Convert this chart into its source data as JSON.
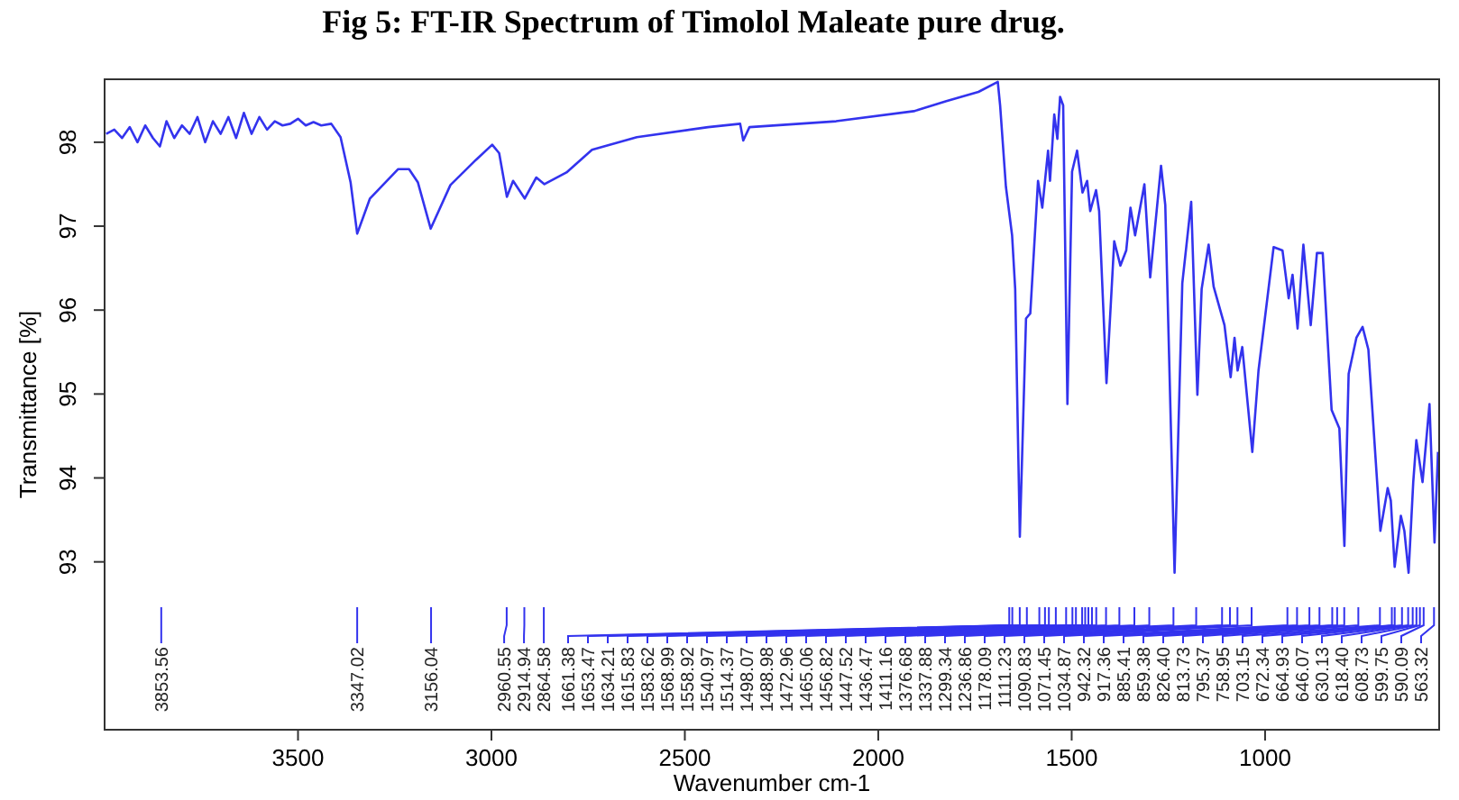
{
  "chart_data": {
    "type": "line",
    "title": "Fig 5: FT-IR Spectrum of Timolol Maleate pure drug.",
    "xlabel": "Wavenumber cm-1",
    "ylabel": "Transmittance [%]",
    "xlim": [
      4000,
      550
    ],
    "ylim": [
      91,
      98.75
    ],
    "xticks": [
      3500,
      3000,
      2500,
      2000,
      1500,
      1000
    ],
    "yticks": [
      93,
      94,
      95,
      96,
      97,
      98
    ],
    "grid": false,
    "marker": "none",
    "line_style": "solid",
    "series": [
      {
        "color": "#3333ee",
        "x": [
          3996,
          3975,
          3955,
          3935,
          3915,
          3895,
          3875,
          3857,
          3840,
          3820,
          3800,
          3780,
          3760,
          3740,
          3720,
          3700,
          3680,
          3660,
          3640,
          3620,
          3600,
          3580,
          3560,
          3540,
          3520,
          3500,
          3480,
          3460,
          3440,
          3414,
          3390,
          3364,
          3347,
          3314,
          3241,
          3213,
          3190,
          3157,
          3106,
          3040,
          2998,
          2980,
          2960,
          2944,
          2914,
          2884,
          2863,
          2806,
          2740,
          2624,
          2440,
          2357,
          2349,
          2333,
          2109,
          1908,
          1824,
          1741,
          1691,
          1685,
          1670,
          1654,
          1646,
          1634,
          1618,
          1607,
          1587,
          1576,
          1561,
          1556,
          1545,
          1537,
          1530,
          1522,
          1511,
          1499,
          1486,
          1472,
          1460,
          1452,
          1437,
          1429,
          1410,
          1390,
          1374,
          1359,
          1348,
          1336,
          1312,
          1297,
          1269,
          1258,
          1234,
          1214,
          1191,
          1175,
          1164,
          1146,
          1133,
          1105,
          1089,
          1079,
          1071,
          1059,
          1033,
          1017,
          978,
          955,
          939,
          929,
          916,
          901,
          882,
          866,
          851,
          828,
          808,
          795,
          784,
          764,
          748,
          733,
          702,
          683,
          675,
          665,
          649,
          640,
          629,
          617,
          609,
          593,
          575,
          562,
          553
        ],
        "values": [
          98.1,
          98.15,
          98.05,
          98.18,
          98.0,
          98.2,
          98.05,
          97.95,
          98.25,
          98.05,
          98.2,
          98.1,
          98.3,
          98.0,
          98.25,
          98.1,
          98.3,
          98.05,
          98.35,
          98.1,
          98.3,
          98.15,
          98.25,
          98.2,
          98.22,
          98.28,
          98.2,
          98.24,
          98.2,
          98.22,
          98.06,
          97.52,
          96.91,
          97.33,
          97.68,
          97.68,
          97.52,
          96.97,
          97.49,
          97.79,
          97.97,
          97.87,
          97.35,
          97.54,
          97.33,
          97.58,
          97.5,
          97.64,
          97.91,
          98.06,
          98.18,
          98.22,
          98.02,
          98.18,
          98.25,
          98.37,
          98.49,
          98.6,
          98.72,
          98.44,
          97.47,
          96.89,
          96.25,
          93.3,
          95.9,
          95.96,
          97.54,
          97.22,
          97.9,
          97.54,
          98.33,
          98.04,
          98.54,
          98.44,
          94.88,
          97.65,
          97.9,
          97.4,
          97.54,
          97.18,
          97.43,
          97.18,
          95.13,
          96.82,
          96.53,
          96.71,
          97.22,
          96.89,
          97.5,
          96.39,
          97.72,
          97.25,
          92.87,
          96.32,
          97.29,
          94.99,
          96.25,
          96.78,
          96.28,
          95.82,
          95.2,
          95.67,
          95.28,
          95.56,
          94.31,
          95.28,
          96.75,
          96.71,
          96.14,
          96.42,
          95.78,
          96.78,
          95.82,
          96.68,
          96.68,
          94.81,
          94.59,
          93.19,
          95.24,
          95.67,
          95.8,
          95.53,
          93.37,
          93.88,
          93.73,
          92.94,
          93.55,
          93.37,
          92.87,
          93.95,
          94.45,
          93.95,
          94.88,
          93.23,
          94.31
        ]
      }
    ],
    "annotations": [
      {
        "text": "3853.56",
        "x": 3853.56
      },
      {
        "text": "3347.02",
        "x": 3347.02
      },
      {
        "text": "3156.04",
        "x": 3156.04
      },
      {
        "text": "2960.55",
        "x": 2960.55
      },
      {
        "text": "2914.94",
        "x": 2914.94
      },
      {
        "text": "2864.58",
        "x": 2864.58
      },
      {
        "text": "1661.38",
        "x": 1661.38
      },
      {
        "text": "1653.47",
        "x": 1653.47
      },
      {
        "text": "1634.21",
        "x": 1634.21
      },
      {
        "text": "1615.83",
        "x": 1615.83
      },
      {
        "text": "1583.62",
        "x": 1583.62
      },
      {
        "text": "1568.99",
        "x": 1568.99
      },
      {
        "text": "1558.92",
        "x": 1558.92
      },
      {
        "text": "1540.97",
        "x": 1540.97
      },
      {
        "text": "1514.37",
        "x": 1514.37
      },
      {
        "text": "1498.07",
        "x": 1498.07
      },
      {
        "text": "1488.98",
        "x": 1488.98
      },
      {
        "text": "1472.96",
        "x": 1472.96
      },
      {
        "text": "1465.06",
        "x": 1465.06
      },
      {
        "text": "1456.82",
        "x": 1456.82
      },
      {
        "text": "1447.52",
        "x": 1447.52
      },
      {
        "text": "1436.47",
        "x": 1436.47
      },
      {
        "text": "1411.16",
        "x": 1411.16
      },
      {
        "text": "1376.68",
        "x": 1376.68
      },
      {
        "text": "1337.88",
        "x": 1337.88
      },
      {
        "text": "1299.34",
        "x": 1299.34
      },
      {
        "text": "1236.86",
        "x": 1236.86
      },
      {
        "text": "1178.09",
        "x": 1178.09
      },
      {
        "text": "1111.23",
        "x": 1111.23
      },
      {
        "text": "1090.83",
        "x": 1090.83
      },
      {
        "text": "1071.45",
        "x": 1071.45
      },
      {
        "text": "1034.87",
        "x": 1034.87
      },
      {
        "text": "942.32",
        "x": 942.32
      },
      {
        "text": "917.36",
        "x": 917.36
      },
      {
        "text": "885.41",
        "x": 885.41
      },
      {
        "text": "859.38",
        "x": 859.38
      },
      {
        "text": "826.40",
        "x": 826.4
      },
      {
        "text": "813.73",
        "x": 813.73
      },
      {
        "text": "795.37",
        "x": 795.37
      },
      {
        "text": "758.95",
        "x": 758.95
      },
      {
        "text": "703.15",
        "x": 703.15
      },
      {
        "text": "672.34",
        "x": 672.34
      },
      {
        "text": "664.93",
        "x": 664.93
      },
      {
        "text": "646.07",
        "x": 646.07
      },
      {
        "text": "630.13",
        "x": 630.13
      },
      {
        "text": "618.40",
        "x": 618.4
      },
      {
        "text": "608.73",
        "x": 608.73
      },
      {
        "text": "599.75",
        "x": 599.75
      },
      {
        "text": "590.09",
        "x": 590.09
      },
      {
        "text": "563.32",
        "x": 563.32
      }
    ]
  }
}
